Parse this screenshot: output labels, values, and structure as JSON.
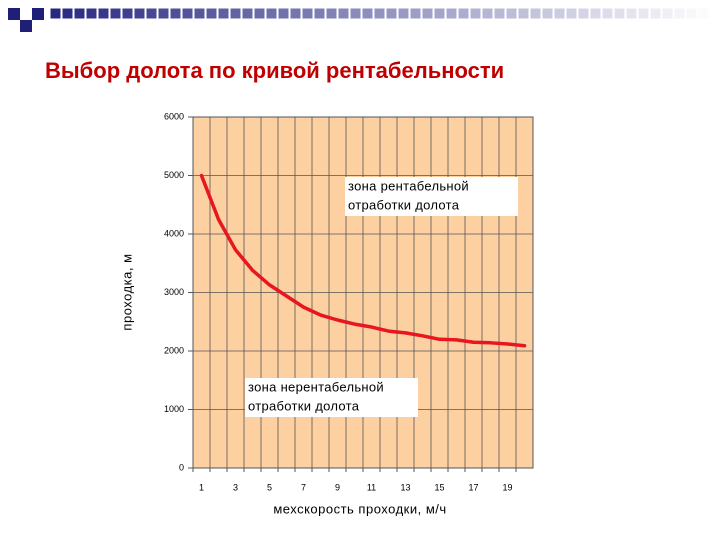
{
  "chart_data": {
    "type": "line",
    "title": "Выбор долота по кривой рентабельности",
    "x_label": "мехскорость проходки, м/ч",
    "y_label": "проходка, м",
    "annotations": [
      [
        "зона рентабельной",
        "отработки долота"
      ],
      [
        "зона нерентабельной",
        "отработки долота"
      ]
    ],
    "categories": [
      "1",
      null,
      "3",
      null,
      "5",
      null,
      "7",
      null,
      "9",
      null,
      "11",
      null,
      "13",
      null,
      "15",
      null,
      "17",
      null,
      "19",
      null
    ],
    "values": [
      5000,
      4250,
      3730,
      3380,
      3130,
      2940,
      2750,
      2615,
      2530,
      2460,
      2410,
      2340,
      2310,
      2260,
      2200,
      2190,
      2150,
      2140,
      2120,
      2090
    ],
    "color": "#e8161e",
    "ylim": [
      0,
      6000
    ],
    "yticks": [
      0,
      1000,
      2000,
      3000,
      4000,
      5000,
      6000
    ],
    "grid": true
  }
}
